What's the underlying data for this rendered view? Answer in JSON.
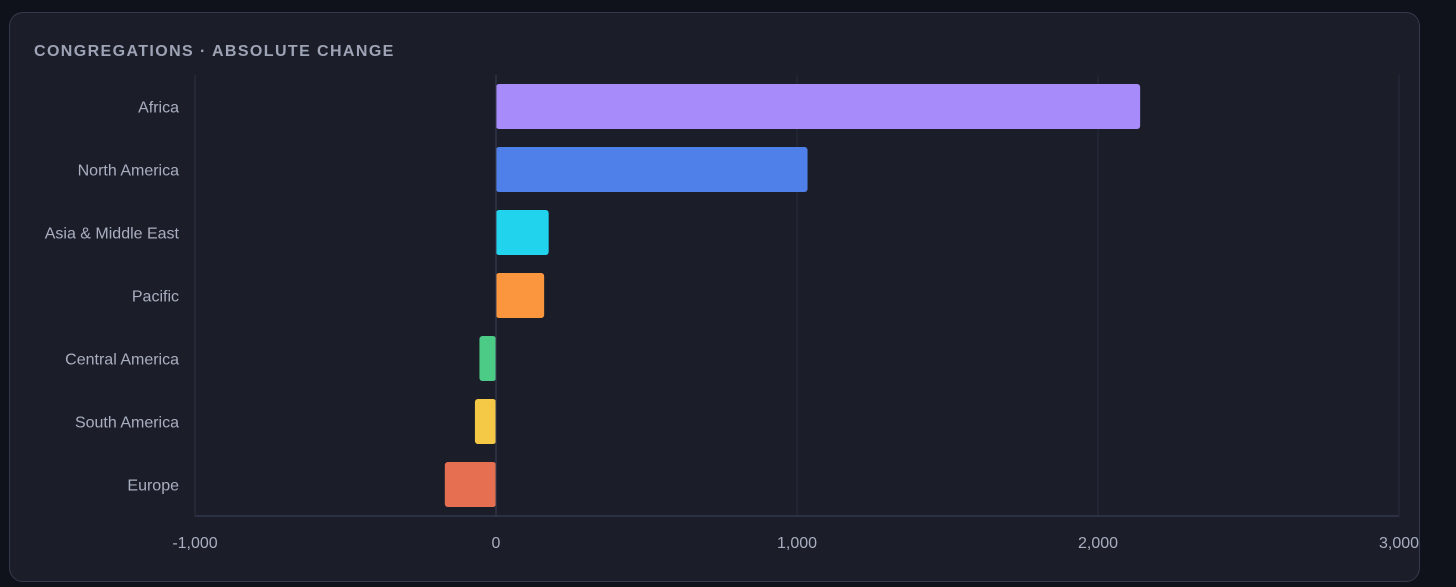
{
  "chart_data": {
    "type": "bar",
    "orientation": "horizontal",
    "title": "CONGREGATIONS · ABSOLUTE CHANGE",
    "xlabel": "",
    "ylabel": "",
    "xlim": [
      -1000,
      3000
    ],
    "xticks": [
      -1000,
      0,
      1000,
      2000,
      3000
    ],
    "xtick_labels": [
      "-1,000",
      "0",
      "1,000",
      "2,000",
      "3,000"
    ],
    "grid": "vertical",
    "legend": "none",
    "categories": [
      "Africa",
      "North America",
      "Asia & Middle East",
      "Pacific",
      "Central America",
      "South America",
      "Europe"
    ],
    "values": [
      2140,
      1035,
      175,
      160,
      -55,
      -70,
      -170
    ],
    "colors": [
      "#a78bfa",
      "#4f80ea",
      "#22d3ee",
      "#fb963e",
      "#4ccb86",
      "#f5c945",
      "#e76f51"
    ]
  }
}
